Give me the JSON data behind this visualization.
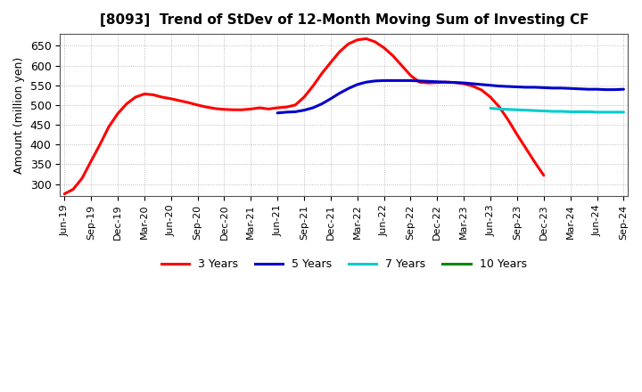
{
  "title": "[8093]  Trend of StDev of 12-Month Moving Sum of Investing CF",
  "ylabel": "Amount (million yen)",
  "background_color": "#ffffff",
  "grid_color": "#999999",
  "ylim": [
    270,
    680
  ],
  "yticks": [
    300,
    350,
    400,
    450,
    500,
    550,
    600,
    650
  ],
  "series": {
    "3years": {
      "color": "#ff0000",
      "linewidth": 2.2,
      "label": "3 Years",
      "x": [
        0,
        1,
        2,
        3,
        4,
        5,
        6,
        7,
        8,
        9,
        10,
        11,
        12,
        13,
        14,
        15,
        16,
        17,
        18,
        19,
        20,
        21,
        22,
        23,
        24,
        25,
        26,
        27,
        28,
        29,
        30,
        31,
        32,
        33,
        34,
        35,
        36,
        37,
        38,
        39,
        40,
        41,
        42,
        43,
        44,
        45,
        46,
        47,
        48,
        49,
        50,
        51,
        52,
        53,
        54
      ],
      "y": [
        275,
        287,
        315,
        358,
        400,
        445,
        478,
        503,
        520,
        528,
        526,
        520,
        516,
        511,
        506,
        500,
        495,
        491,
        489,
        488,
        488,
        490,
        493,
        490,
        493,
        495,
        500,
        520,
        548,
        580,
        608,
        635,
        655,
        665,
        668,
        660,
        645,
        625,
        600,
        575,
        558,
        556,
        557,
        558,
        557,
        554,
        548,
        538,
        520,
        495,
        462,
        425,
        390,
        355,
        322
      ]
    },
    "5years": {
      "color": "#0000cc",
      "linewidth": 2.2,
      "label": "5 Years",
      "x": [
        24,
        25,
        26,
        27,
        28,
        29,
        30,
        31,
        32,
        33,
        34,
        35,
        36,
        37,
        38,
        39,
        40,
        41,
        42,
        43,
        44,
        45,
        46,
        47,
        48,
        49,
        50,
        51,
        52,
        53,
        54,
        55,
        56,
        57,
        58,
        59,
        60,
        61,
        62,
        63
      ],
      "y": [
        480,
        482,
        483,
        487,
        493,
        503,
        516,
        530,
        542,
        552,
        558,
        561,
        562,
        562,
        562,
        562,
        561,
        560,
        559,
        558,
        557,
        556,
        554,
        552,
        550,
        548,
        547,
        546,
        545,
        545,
        544,
        543,
        543,
        542,
        541,
        540,
        540,
        539,
        539,
        540
      ]
    },
    "7years": {
      "color": "#00cccc",
      "linewidth": 2.2,
      "label": "7 Years",
      "x": [
        48,
        49,
        50,
        51,
        52,
        53,
        54,
        55,
        56,
        57,
        58,
        59,
        60,
        61,
        62,
        63
      ],
      "y": [
        492,
        490,
        489,
        488,
        487,
        486,
        485,
        484,
        484,
        483,
        483,
        483,
        482,
        482,
        482,
        482
      ]
    },
    "10years": {
      "color": "#008800",
      "linewidth": 2.2,
      "label": "10 Years",
      "x": [],
      "y": []
    }
  },
  "xtick_labels": [
    "Jun-19",
    "Sep-19",
    "Dec-19",
    "Mar-20",
    "Jun-20",
    "Sep-20",
    "Dec-20",
    "Mar-21",
    "Jun-21",
    "Sep-21",
    "Dec-21",
    "Mar-22",
    "Jun-22",
    "Sep-22",
    "Dec-22",
    "Mar-23",
    "Jun-23",
    "Sep-23",
    "Dec-23",
    "Mar-24",
    "Jun-24",
    "Sep-24"
  ],
  "xtick_positions": [
    0,
    3,
    6,
    9,
    12,
    15,
    18,
    21,
    24,
    27,
    30,
    33,
    36,
    39,
    42,
    45,
    48,
    51,
    54,
    57,
    60,
    63
  ],
  "legend": [
    {
      "label": "3 Years",
      "color": "#ff0000"
    },
    {
      "label": "5 Years",
      "color": "#0000cc"
    },
    {
      "label": "7 Years",
      "color": "#00cccc"
    },
    {
      "label": "10 Years",
      "color": "#008800"
    }
  ]
}
